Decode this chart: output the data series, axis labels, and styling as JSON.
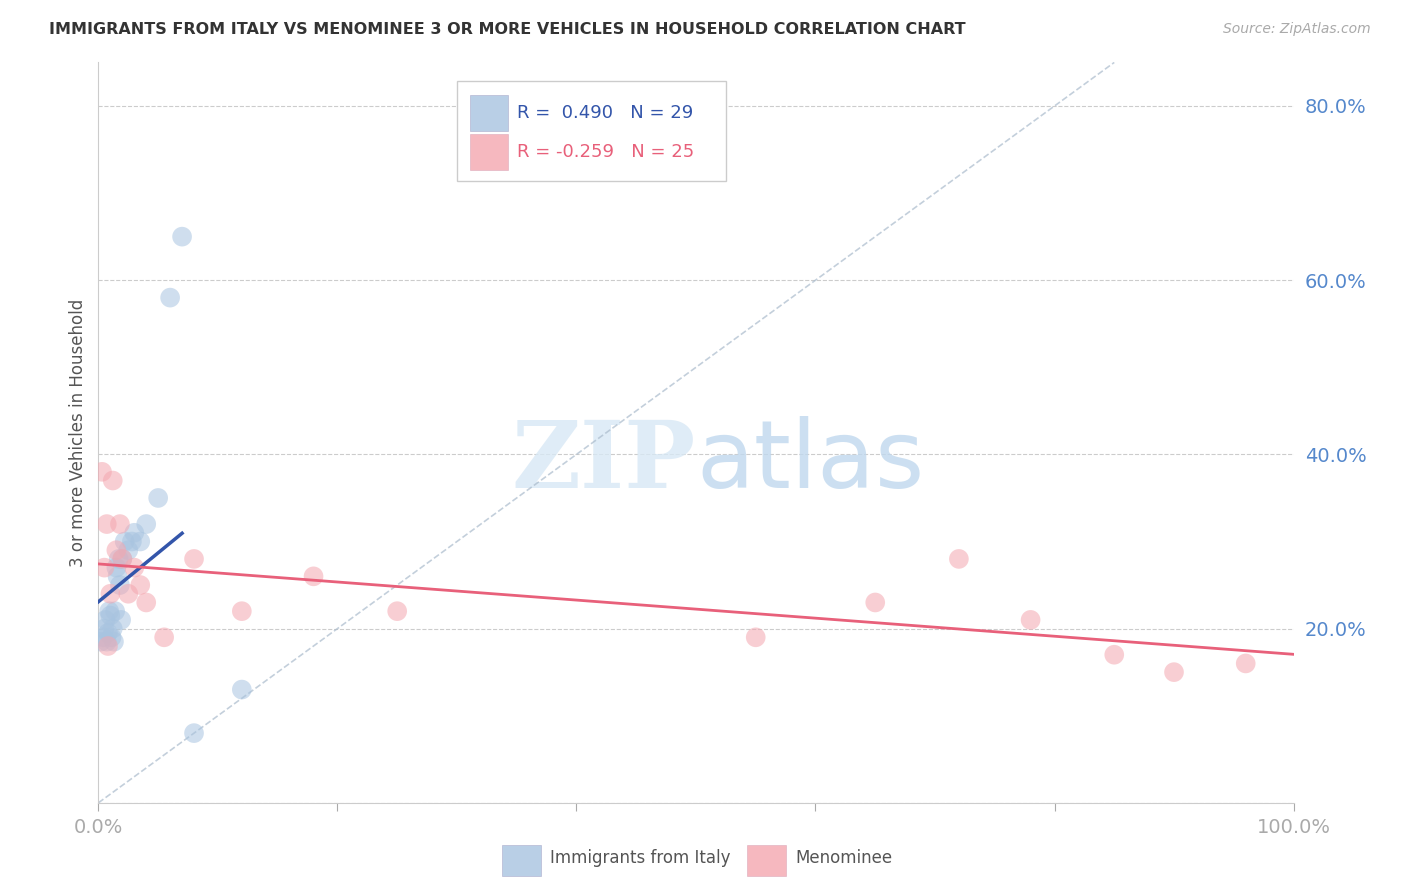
{
  "title": "IMMIGRANTS FROM ITALY VS MENOMINEE 3 OR MORE VEHICLES IN HOUSEHOLD CORRELATION CHART",
  "source_text": "Source: ZipAtlas.com",
  "ylabel": "3 or more Vehicles in Household",
  "xlim": [
    0.0,
    1.0
  ],
  "ylim": [
    0.0,
    0.85
  ],
  "x_ticks": [
    0.0,
    0.2,
    0.4,
    0.6,
    0.8,
    1.0
  ],
  "x_tick_labels": [
    "0.0%",
    "",
    "",
    "",
    "",
    "100.0%"
  ],
  "y_ticks": [
    0.0,
    0.2,
    0.4,
    0.6,
    0.8
  ],
  "y_tick_labels": [
    "",
    "20.0%",
    "40.0%",
    "60.0%",
    "80.0%"
  ],
  "blue_color": "#A8C4E0",
  "pink_color": "#F4A7B0",
  "blue_line_color": "#3355AA",
  "pink_line_color": "#E8607A",
  "blue_r": "0.490",
  "blue_n": "29",
  "pink_r": "-0.259",
  "pink_n": "25",
  "grid_color": "#CCCCCC",
  "background_color": "#FFFFFF",
  "title_color": "#333333",
  "axis_label_color": "#5588CC",
  "marker_size": 200,
  "marker_alpha": 0.55,
  "blue_x": [
    0.002,
    0.004,
    0.005,
    0.006,
    0.007,
    0.008,
    0.009,
    0.01,
    0.011,
    0.012,
    0.013,
    0.014,
    0.015,
    0.016,
    0.017,
    0.018,
    0.019,
    0.02,
    0.022,
    0.025,
    0.028,
    0.03,
    0.035,
    0.04,
    0.05,
    0.06,
    0.07,
    0.08,
    0.12
  ],
  "blue_y": [
    0.185,
    0.19,
    0.2,
    0.21,
    0.185,
    0.195,
    0.22,
    0.215,
    0.19,
    0.2,
    0.185,
    0.22,
    0.27,
    0.26,
    0.28,
    0.25,
    0.21,
    0.28,
    0.3,
    0.29,
    0.3,
    0.31,
    0.3,
    0.32,
    0.35,
    0.58,
    0.65,
    0.08,
    0.13
  ],
  "pink_x": [
    0.003,
    0.005,
    0.007,
    0.008,
    0.01,
    0.012,
    0.015,
    0.018,
    0.02,
    0.025,
    0.03,
    0.035,
    0.04,
    0.055,
    0.08,
    0.12,
    0.18,
    0.25,
    0.55,
    0.65,
    0.72,
    0.78,
    0.85,
    0.9,
    0.96
  ],
  "pink_y": [
    0.38,
    0.27,
    0.32,
    0.18,
    0.24,
    0.37,
    0.29,
    0.32,
    0.28,
    0.24,
    0.27,
    0.25,
    0.23,
    0.19,
    0.28,
    0.22,
    0.26,
    0.22,
    0.19,
    0.23,
    0.28,
    0.21,
    0.17,
    0.15,
    0.16
  ],
  "watermark_zip": "ZIP",
  "watermark_atlas": "atlas"
}
